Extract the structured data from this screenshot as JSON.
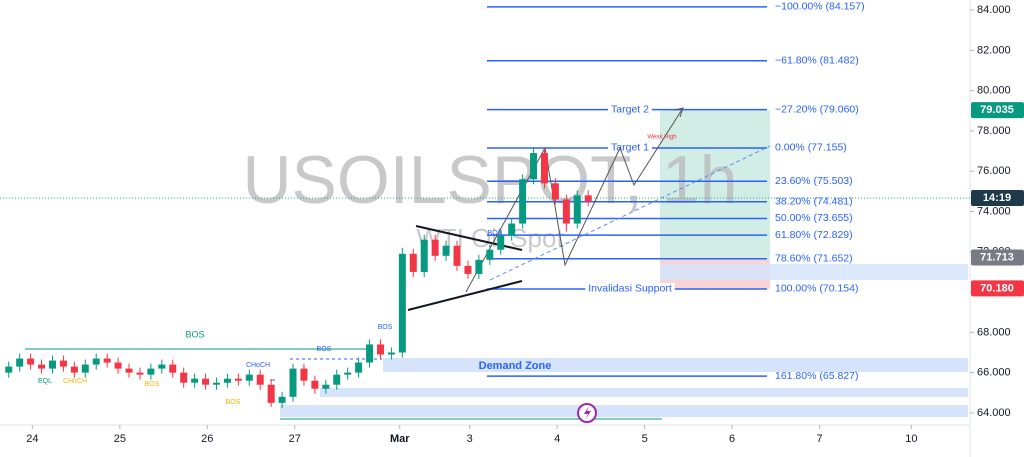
{
  "chart_data": {
    "type": "candlestick",
    "title": "USOILSPOT, 1h",
    "subtitle": "WTI Oil Spot",
    "xlim": [
      -0.37,
      10.72
    ],
    "xticks": [
      {
        "value": 0,
        "label": "24"
      },
      {
        "value": 1,
        "label": "25"
      },
      {
        "value": 2,
        "label": "26"
      },
      {
        "value": 3,
        "label": "27"
      },
      {
        "value": 4.2,
        "label": "Mar"
      },
      {
        "value": 5,
        "label": "3"
      },
      {
        "value": 6,
        "label": "4"
      },
      {
        "value": 7,
        "label": "5"
      },
      {
        "value": 8,
        "label": "6"
      },
      {
        "value": 9,
        "label": "7"
      },
      {
        "value": 10.05,
        "label": "10"
      }
    ],
    "ylim": [
      63.4,
      84.5
    ],
    "yticks": [
      {
        "value": 64,
        "label": "64.000"
      },
      {
        "value": 66,
        "label": "66.000"
      },
      {
        "value": 68,
        "label": "68.000"
      },
      {
        "value": 70,
        "label": "70.000"
      },
      {
        "value": 72,
        "label": "72.000"
      },
      {
        "value": 74,
        "label": "74.000"
      },
      {
        "value": 76,
        "label": "76.000"
      },
      {
        "value": 78,
        "label": "78.000"
      },
      {
        "value": 80,
        "label": "80.000"
      },
      {
        "value": 82,
        "label": "82.000"
      },
      {
        "value": 84,
        "label": "84.000"
      }
    ],
    "colors": {
      "up": "#089981",
      "down": "#f23645"
    },
    "x": [
      -0.27,
      -0.145,
      -0.02,
      0.105,
      0.23,
      0.355,
      0.48,
      0.605,
      0.73,
      0.855,
      0.98,
      1.105,
      1.23,
      1.355,
      1.48,
      1.605,
      1.73,
      1.855,
      1.98,
      2.105,
      2.23,
      2.355,
      2.48,
      2.605,
      2.73,
      2.855,
      2.98,
      3.105,
      3.23,
      3.355,
      3.48,
      3.605,
      3.73,
      3.855,
      3.98,
      4.105,
      4.23,
      4.355,
      4.48,
      4.605,
      4.73,
      4.855,
      4.98,
      5.105,
      5.23,
      5.355,
      5.48,
      5.605,
      5.73,
      5.855,
      5.98,
      6.105,
      6.23,
      6.355
    ],
    "open": [
      66.0,
      66.3,
      66.7,
      66.4,
      66.2,
      66.6,
      66.3,
      66.0,
      66.4,
      66.7,
      66.5,
      66.2,
      66.0,
      65.9,
      66.2,
      66.4,
      66.0,
      65.5,
      65.7,
      65.4,
      65.5,
      65.7,
      65.6,
      65.9,
      65.4,
      64.5,
      64.8,
      66.2,
      65.6,
      65.2,
      65.4,
      65.9,
      66.0,
      66.5,
      67.4,
      66.9,
      67.0,
      71.9,
      71.0,
      72.6,
      71.8,
      72.3,
      71.3,
      70.9,
      71.6,
      72.1,
      72.8,
      73.4,
      75.6,
      76.9,
      75.4,
      74.6,
      73.4,
      74.8
    ],
    "high": [
      66.55,
      66.95,
      66.95,
      66.65,
      66.85,
      66.85,
      66.55,
      66.65,
      66.95,
      66.95,
      66.75,
      66.45,
      66.25,
      66.45,
      66.65,
      66.65,
      66.25,
      65.95,
      65.95,
      65.75,
      65.95,
      65.95,
      66.15,
      66.15,
      65.65,
      65.05,
      66.45,
      66.45,
      65.85,
      65.65,
      66.15,
      66.25,
      66.75,
      67.65,
      67.65,
      67.25,
      72.2,
      72.15,
      72.85,
      72.85,
      72.55,
      72.55,
      71.55,
      71.85,
      72.35,
      73.05,
      73.65,
      75.85,
      77.2,
      77.15,
      75.65,
      74.85,
      75.05,
      75.05
    ],
    "low": [
      65.75,
      66.05,
      66.15,
      65.95,
      65.95,
      66.05,
      65.75,
      65.75,
      66.15,
      66.25,
      65.95,
      65.75,
      65.65,
      65.65,
      65.95,
      65.75,
      65.25,
      65.25,
      65.15,
      65.15,
      65.25,
      65.35,
      65.35,
      65.15,
      64.3,
      64.25,
      64.55,
      65.35,
      64.95,
      64.95,
      65.15,
      65.65,
      65.75,
      66.25,
      66.65,
      66.65,
      66.75,
      70.75,
      70.75,
      71.55,
      71.55,
      71.05,
      70.65,
      70.65,
      71.35,
      71.85,
      72.55,
      73.15,
      75.35,
      75.15,
      74.35,
      73.0,
      73.15,
      74.25
    ],
    "close": [
      66.3,
      66.7,
      66.4,
      66.2,
      66.6,
      66.3,
      66.0,
      66.4,
      66.7,
      66.5,
      66.2,
      66.0,
      65.9,
      66.2,
      66.4,
      66.0,
      65.5,
      65.7,
      65.4,
      65.5,
      65.7,
      65.6,
      65.9,
      65.4,
      64.5,
      64.8,
      66.2,
      65.6,
      65.2,
      65.4,
      65.9,
      66.0,
      66.5,
      67.4,
      66.9,
      67.0,
      71.9,
      71.0,
      72.6,
      71.8,
      72.3,
      71.3,
      70.9,
      71.6,
      72.1,
      72.8,
      73.4,
      75.6,
      76.9,
      75.4,
      74.6,
      73.4,
      74.8,
      74.5
    ],
    "fib_levels": [
      {
        "label": "−100.00% (84.157)",
        "value": 84.157
      },
      {
        "label": "−61.80% (81.482)",
        "value": 81.482
      },
      {
        "label": "−27.20% (79.060)",
        "value": 79.06,
        "tag": "Target 2"
      },
      {
        "label": "0.00% (77.155)",
        "value": 77.155,
        "tag": "Target 1"
      },
      {
        "label": "23.60% (75.503)",
        "value": 75.503
      },
      {
        "label": "38.20% (74.481)",
        "value": 74.481
      },
      {
        "label": "50.00% (73.655)",
        "value": 73.655
      },
      {
        "label": "61.80% (72.829)",
        "value": 72.829
      },
      {
        "label": "78.60% (71.652)",
        "value": 71.652
      },
      {
        "label": "100.00% (70.154)",
        "value": 70.154,
        "tag": "Invalidasi Support"
      },
      {
        "label": "161.80% (65.827)",
        "value": 65.827
      }
    ],
    "price_line": {
      "label": "14:19",
      "value": 74.67
    },
    "price_badges": [
      {
        "label": "79.035",
        "value": 79.035,
        "color": "#089981"
      },
      {
        "label": "71.713",
        "value": 71.713,
        "color": "#787b86"
      },
      {
        "label": "70.180",
        "value": 70.18,
        "color": "#f23645"
      }
    ],
    "annotations": [
      "BOS",
      "BOS",
      "BOS",
      "CHoCH",
      "EQL",
      "CHoCH",
      "BOS",
      "BOS",
      "BOS",
      "Weak High",
      "Demand Zone"
    ]
  }
}
